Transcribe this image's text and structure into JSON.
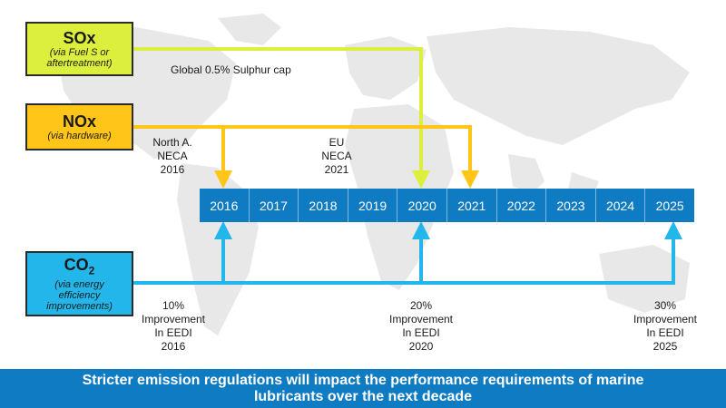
{
  "boxes": {
    "sox": {
      "title": "SOx",
      "sub_1": "(via Fuel S or",
      "sub_2": "aftertreatment)"
    },
    "nox": {
      "title": "NOx",
      "sub": "(via hardware)"
    },
    "co2": {
      "title_base": "CO",
      "title_subscript": "2",
      "sub_1": "(via energy",
      "sub_2": "efficiency",
      "sub_3": "improvements)"
    }
  },
  "timeline": {
    "years": [
      "2016",
      "2017",
      "2018",
      "2019",
      "2020",
      "2021",
      "2022",
      "2023",
      "2024",
      "2025"
    ]
  },
  "labels": {
    "sulphur_cap": "Global 0.5% Sulphur cap",
    "neca_na": {
      "line1": "North A.",
      "line2": "NECA",
      "line3": "2016"
    },
    "neca_eu": {
      "line1": "EU",
      "line2": "NECA",
      "line3": "2021"
    },
    "eedi": [
      {
        "line1": "10%",
        "line2": "Improvement",
        "line3": "In EEDI",
        "line4": "2016"
      },
      {
        "line1": "20%",
        "line2": "Improvement",
        "line3": "In EEDI",
        "line4": "2020"
      },
      {
        "line1": "30%",
        "line2": "Improvement",
        "line3": "In EEDI",
        "line4": "2025"
      }
    ]
  },
  "banner": {
    "line1": "Stricter emission regulations will impact the performance requirements of marine",
    "line2": "lubricants over the next decade"
  },
  "colors": {
    "sox": "#dcef3d",
    "nox": "#ffc519",
    "co2": "#22b6ea",
    "timeline": "#0f7bc2",
    "banner": "#0f7bc2",
    "map": "#e6e6e6"
  }
}
